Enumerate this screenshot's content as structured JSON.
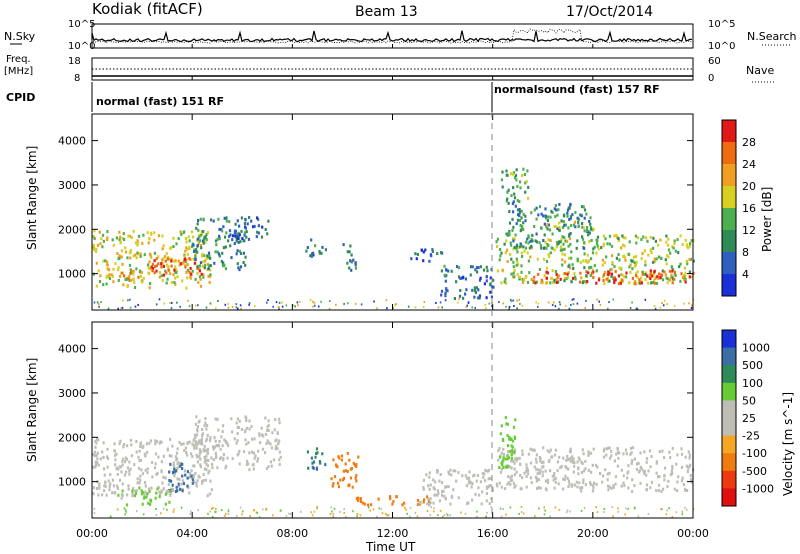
{
  "header": {
    "station": "Kodiak (fitACF)",
    "beam": "Beam 13",
    "date": "17/Oct/2014"
  },
  "side_labels": {
    "nsky": "N.Sky",
    "nsearch": "N.Search",
    "freq_line1": "Freq.",
    "freq_line2": "[MHz]",
    "nave": "Nave",
    "cpid": "CPID"
  },
  "noise_axis": {
    "left_ticks": [
      "10^5",
      "10^0"
    ],
    "right_ticks": [
      "10^5",
      "10^0"
    ]
  },
  "freq_axis": {
    "left_ticks": [
      "18",
      "8"
    ],
    "right_ticks": [
      "60",
      "0"
    ]
  },
  "cpid_segments": [
    {
      "label": "normal (fast) 151 RF",
      "start_hour": 0
    },
    {
      "label": "normalsound (fast) 157 RF",
      "start_hour": 16
    }
  ],
  "colors": {
    "power_scale": [
      "#1a2fd8",
      "#2f5fbf",
      "#2f8a55",
      "#4caf50",
      "#d8d020",
      "#f0a020",
      "#f06a10",
      "#e01818"
    ],
    "velocity_scale": [
      "#1a2fd8",
      "#3a6ea5",
      "#2e8b57",
      "#66cc33",
      "#bebeb6",
      "#bebeb6",
      "#f5a623",
      "#f07c10",
      "#ee3a10",
      "#e01010"
    ]
  },
  "chart_data": [
    {
      "type": "heatmap",
      "name": "power",
      "ylabel": "Slant Range [km]",
      "xlim_hours": [
        0,
        24
      ],
      "ylim": [
        180,
        4600
      ],
      "yticks": [
        1000,
        2000,
        3000,
        4000
      ],
      "colorbar": {
        "label": "Power [dB]",
        "ticks": [
          "28",
          "24",
          "20",
          "16",
          "12",
          "8",
          "4"
        ],
        "range": [
          0,
          32
        ]
      },
      "features": [
        {
          "x0": 0.0,
          "x1": 4.7,
          "y0": 700,
          "y1": 2000,
          "value_db": 18
        },
        {
          "x0": 2.3,
          "x1": 4.4,
          "y0": 1000,
          "y1": 1450,
          "value_db": 28
        },
        {
          "x0": 0.0,
          "x1": 2.0,
          "y0": 900,
          "y1": 1100,
          "value_db": 22
        },
        {
          "x0": 4.0,
          "x1": 6.2,
          "y0": 1100,
          "y1": 2300,
          "value_db": 10
        },
        {
          "x0": 5.5,
          "x1": 7.0,
          "y0": 1800,
          "y1": 2300,
          "value_db": 6
        },
        {
          "x0": 8.5,
          "x1": 9.3,
          "y0": 1400,
          "y1": 1800,
          "value_db": 8
        },
        {
          "x0": 10.0,
          "x1": 10.6,
          "y0": 1100,
          "y1": 1700,
          "value_db": 8
        },
        {
          "x0": 12.7,
          "x1": 14.0,
          "y0": 1300,
          "y1": 1600,
          "value_db": 6
        },
        {
          "x0": 13.8,
          "x1": 16.0,
          "y0": 450,
          "y1": 1200,
          "value_db": 8
        },
        {
          "x0": 16.1,
          "x1": 24.0,
          "y0": 800,
          "y1": 1900,
          "value_db": 16
        },
        {
          "x0": 17.5,
          "x1": 24.0,
          "y0": 800,
          "y1": 1100,
          "value_db": 28
        },
        {
          "x0": 16.5,
          "x1": 20.0,
          "y0": 1600,
          "y1": 2600,
          "value_db": 10
        },
        {
          "x0": 18.0,
          "x1": 20.0,
          "y0": 2000,
          "y1": 2200,
          "value_db": 16
        },
        {
          "x0": 16.3,
          "x1": 17.4,
          "y0": 2600,
          "y1": 3400,
          "value_db": 12
        }
      ]
    },
    {
      "type": "heatmap",
      "name": "velocity",
      "ylabel": "Slant Range [km]",
      "xlabel": "Time UT",
      "xticks": [
        "00:00",
        "04:00",
        "08:00",
        "12:00",
        "16:00",
        "20:00",
        "00:00"
      ],
      "xlim_hours": [
        0,
        24
      ],
      "ylim": [
        180,
        4600
      ],
      "yticks": [
        1000,
        2000,
        3000,
        4000
      ],
      "colorbar": {
        "label": "Velocity [m s^-1]",
        "ticks": [
          "1000",
          "500",
          "100",
          "50",
          "25",
          "-25",
          "-100",
          "-500",
          "-1000"
        ]
      },
      "features": [
        {
          "x0": 0.0,
          "x1": 4.8,
          "y0": 700,
          "y1": 2000,
          "value_ms": 0
        },
        {
          "x0": 4.0,
          "x1": 7.5,
          "y0": 1300,
          "y1": 2500,
          "value_ms": 0
        },
        {
          "x0": 3.0,
          "x1": 4.0,
          "y0": 800,
          "y1": 1500,
          "value_ms": 800
        },
        {
          "x0": 1.0,
          "x1": 3.2,
          "y0": 500,
          "y1": 900,
          "value_ms": 60
        },
        {
          "x0": 8.5,
          "x1": 9.3,
          "y0": 1300,
          "y1": 1800,
          "value_ms": 400
        },
        {
          "x0": 9.5,
          "x1": 10.6,
          "y0": 900,
          "y1": 1700,
          "value_ms": -300
        },
        {
          "x0": 10.5,
          "x1": 13.5,
          "y0": 500,
          "y1": 700,
          "value_ms": -150
        },
        {
          "x0": 13.0,
          "x1": 16.0,
          "y0": 500,
          "y1": 1300,
          "value_ms": 0
        },
        {
          "x0": 16.1,
          "x1": 24.0,
          "y0": 800,
          "y1": 1800,
          "value_ms": 0
        },
        {
          "x0": 16.2,
          "x1": 17.0,
          "y0": 1300,
          "y1": 2500,
          "value_ms": 80
        }
      ]
    }
  ]
}
